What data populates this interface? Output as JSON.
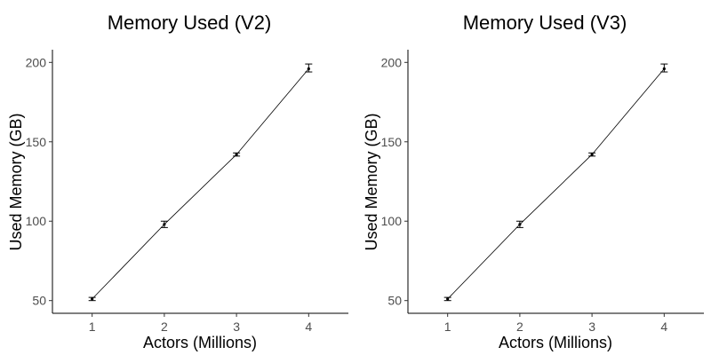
{
  "chart_data": [
    {
      "type": "line",
      "title": "Memory Used (V2)",
      "xlabel": "Actors (Millions)",
      "ylabel": "Used Memory (GB)",
      "x": [
        1,
        2,
        3,
        4
      ],
      "xticks": [
        "1",
        "2",
        "3",
        "4"
      ],
      "yticks": [
        "50",
        "100",
        "150",
        "200"
      ],
      "xlim": [
        0.45,
        4.55
      ],
      "ylim": [
        42,
        208
      ],
      "grid": false,
      "series": [
        {
          "values": [
            51,
            98,
            142,
            196
          ],
          "error_low": [
            50,
            96,
            141,
            194
          ],
          "error_high": [
            52,
            100,
            143,
            199
          ]
        }
      ]
    },
    {
      "type": "line",
      "title": "Memory Used (V3)",
      "xlabel": "Actors (Millions)",
      "ylabel": "Used Memory (GB)",
      "x": [
        1,
        2,
        3,
        4
      ],
      "xticks": [
        "1",
        "2",
        "3",
        "4"
      ],
      "yticks": [
        "50",
        "100",
        "150",
        "200"
      ],
      "xlim": [
        0.45,
        4.55
      ],
      "ylim": [
        42,
        208
      ],
      "grid": false,
      "series": [
        {
          "values": [
            51,
            98,
            142,
            196
          ],
          "error_low": [
            50,
            96,
            141,
            194
          ],
          "error_high": [
            52,
            100,
            143,
            199
          ]
        }
      ]
    }
  ]
}
